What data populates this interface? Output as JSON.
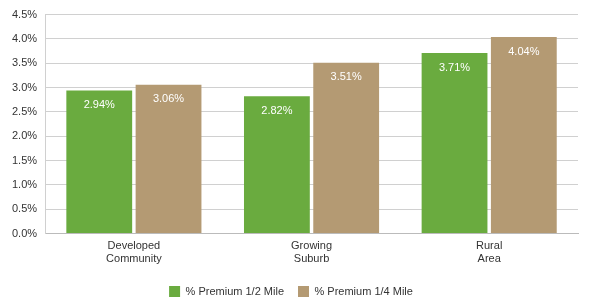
{
  "chart_data": {
    "type": "bar",
    "categories": [
      "Developed Community",
      "Growing Suburb",
      "Rural Area"
    ],
    "series": [
      {
        "name": "% Premium 1/2 Mile",
        "color": "#6aab3f",
        "values": [
          2.94,
          2.82,
          3.71
        ],
        "value_labels": [
          "2.94%",
          "2.82%",
          "3.71%"
        ]
      },
      {
        "name": "% Premium 1/4 Mile",
        "color": "#b49a73",
        "values": [
          3.06,
          3.51,
          4.04
        ],
        "value_labels": [
          "3.06%",
          "3.51%",
          "4.04%"
        ]
      }
    ],
    "ylim": [
      0,
      4.5
    ],
    "yticks": [
      {
        "value": 0,
        "label": "0.0%"
      },
      {
        "value": 0.5,
        "label": "0.5%"
      },
      {
        "value": 1,
        "label": "1.0%"
      },
      {
        "value": 1.5,
        "label": "1.5%"
      },
      {
        "value": 2,
        "label": "2.0%"
      },
      {
        "value": 2.5,
        "label": "2.5%"
      },
      {
        "value": 3,
        "label": "3.0%"
      },
      {
        "value": 3.5,
        "label": "3.5%"
      },
      {
        "value": 4,
        "label": "4.0%"
      },
      {
        "value": 4.5,
        "label": "4.5%"
      }
    ],
    "grid": true,
    "legend": "bottom",
    "data_labels": true
  }
}
